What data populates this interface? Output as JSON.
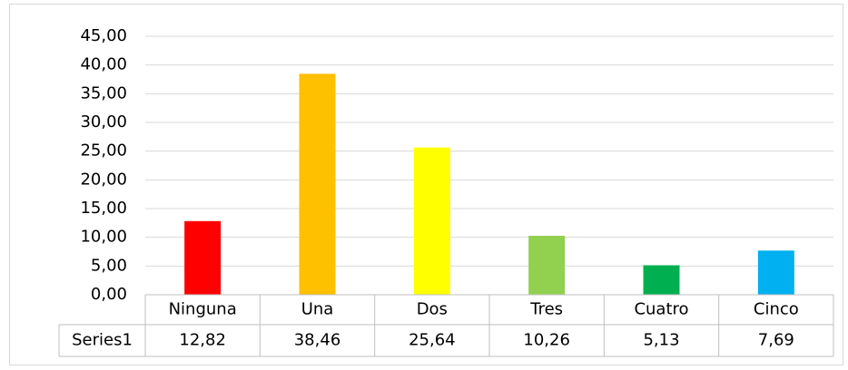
{
  "chart_data": {
    "type": "bar",
    "categories": [
      "Ninguna",
      "Una",
      "Dos",
      "Tres",
      "Cuatro",
      "Cinco"
    ],
    "series": [
      {
        "name": "Series1",
        "colors": [
          "#ff0000",
          "#ffc000",
          "#ffff00",
          "#92d050",
          "#00b050",
          "#00b0f0"
        ],
        "values": [
          12.82,
          38.46,
          25.64,
          10.26,
          5.13,
          7.69
        ],
        "value_labels": [
          "12,82",
          "38,46",
          "25,64",
          "10,26",
          "5,13",
          "7,69"
        ]
      }
    ],
    "ylim": [
      0,
      45
    ],
    "yticks": [
      {
        "value": 0,
        "label": "0,00"
      },
      {
        "value": 5,
        "label": "5,00"
      },
      {
        "value": 10,
        "label": "10,00"
      },
      {
        "value": 15,
        "label": "15,00"
      },
      {
        "value": 20,
        "label": "20,00"
      },
      {
        "value": 25,
        "label": "25,00"
      },
      {
        "value": 30,
        "label": "30,00"
      },
      {
        "value": 35,
        "label": "35,00"
      },
      {
        "value": 40,
        "label": "40,00"
      },
      {
        "value": 45,
        "label": "45,00"
      }
    ],
    "grid": true,
    "data_table": true
  }
}
